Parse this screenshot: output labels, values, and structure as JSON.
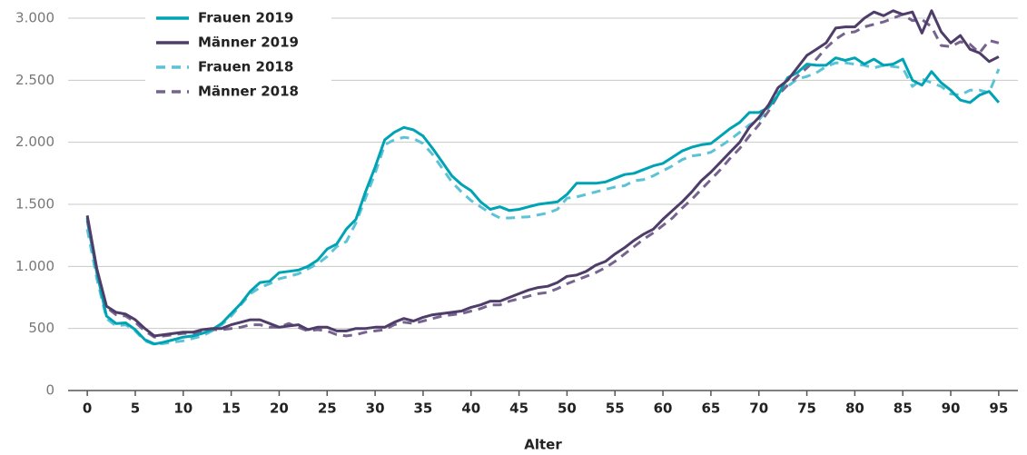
{
  "chart_data": {
    "type": "line",
    "x_label": "Alter",
    "x": [
      0,
      1,
      2,
      3,
      4,
      5,
      6,
      7,
      8,
      9,
      10,
      11,
      12,
      13,
      14,
      15,
      16,
      17,
      18,
      19,
      20,
      21,
      22,
      23,
      24,
      25,
      26,
      27,
      28,
      29,
      30,
      31,
      32,
      33,
      34,
      35,
      36,
      37,
      38,
      39,
      40,
      41,
      42,
      43,
      44,
      45,
      46,
      47,
      48,
      49,
      50,
      51,
      52,
      53,
      54,
      55,
      56,
      57,
      58,
      59,
      60,
      61,
      62,
      63,
      64,
      65,
      66,
      67,
      68,
      69,
      70,
      71,
      72,
      73,
      74,
      75,
      76,
      77,
      78,
      79,
      80,
      81,
      82,
      83,
      84,
      85,
      86,
      87,
      88,
      89,
      90,
      91,
      92,
      93,
      94,
      95
    ],
    "series": [
      {
        "name": "Frauen 2019",
        "color": "#00a3b4",
        "dashed": false,
        "values": [
          1390,
          950,
          600,
          540,
          545,
          490,
          410,
          375,
          390,
          410,
          430,
          440,
          460,
          490,
          540,
          620,
          700,
          800,
          870,
          880,
          950,
          960,
          970,
          1000,
          1050,
          1140,
          1180,
          1300,
          1380,
          1600,
          1800,
          2020,
          2080,
          2120,
          2100,
          2050,
          1950,
          1840,
          1730,
          1660,
          1610,
          1520,
          1460,
          1480,
          1450,
          1460,
          1480,
          1500,
          1510,
          1520,
          1580,
          1670,
          1670,
          1670,
          1680,
          1710,
          1740,
          1750,
          1780,
          1810,
          1830,
          1880,
          1930,
          1960,
          1980,
          1990,
          2050,
          2110,
          2160,
          2240,
          2240,
          2280,
          2380,
          2520,
          2560,
          2630,
          2620,
          2620,
          2680,
          2660,
          2680,
          2630,
          2670,
          2620,
          2630,
          2670,
          2500,
          2460,
          2570,
          2480,
          2420,
          2340,
          2320,
          2380,
          2410,
          2320
        ]
      },
      {
        "name": "Männer 2019",
        "color": "#4e3d68",
        "dashed": false,
        "values": [
          1410,
          980,
          680,
          630,
          615,
          570,
          500,
          440,
          450,
          460,
          470,
          470,
          490,
          500,
          500,
          530,
          550,
          570,
          570,
          540,
          510,
          520,
          530,
          490,
          510,
          510,
          480,
          480,
          500,
          500,
          510,
          510,
          550,
          580,
          560,
          590,
          610,
          620,
          630,
          640,
          670,
          690,
          720,
          720,
          750,
          780,
          810,
          830,
          840,
          870,
          920,
          930,
          960,
          1010,
          1040,
          1100,
          1150,
          1210,
          1260,
          1300,
          1380,
          1450,
          1520,
          1600,
          1690,
          1760,
          1840,
          1920,
          2000,
          2120,
          2200,
          2300,
          2440,
          2500,
          2600,
          2700,
          2750,
          2800,
          2920,
          2930,
          2930,
          3000,
          3050,
          3020,
          3060,
          3030,
          3050,
          2880,
          3060,
          2890,
          2800,
          2860,
          2750,
          2720,
          2650,
          2690
        ]
      },
      {
        "name": "Frauen 2018",
        "color": "#5cc3d6",
        "dashed": true,
        "values": [
          1300,
          900,
          580,
          520,
          530,
          480,
          400,
          370,
          380,
          390,
          400,
          420,
          440,
          480,
          530,
          600,
          690,
          780,
          830,
          860,
          900,
          920,
          940,
          980,
          1020,
          1080,
          1160,
          1200,
          1350,
          1550,
          1750,
          1980,
          2020,
          2040,
          2030,
          1990,
          1900,
          1790,
          1680,
          1600,
          1530,
          1480,
          1430,
          1390,
          1390,
          1395,
          1400,
          1415,
          1430,
          1460,
          1550,
          1560,
          1580,
          1600,
          1620,
          1640,
          1650,
          1690,
          1700,
          1730,
          1770,
          1810,
          1860,
          1890,
          1900,
          1920,
          1970,
          2020,
          2080,
          2140,
          2180,
          2280,
          2400,
          2450,
          2510,
          2530,
          2560,
          2610,
          2640,
          2640,
          2630,
          2620,
          2600,
          2620,
          2610,
          2600,
          2450,
          2510,
          2480,
          2450,
          2390,
          2380,
          2420,
          2420,
          2400,
          2590
        ]
      },
      {
        "name": "Männer 2018",
        "color": "#76648f",
        "dashed": true,
        "values": [
          1370,
          950,
          670,
          610,
          600,
          550,
          480,
          430,
          440,
          450,
          460,
          460,
          480,
          490,
          490,
          500,
          510,
          530,
          530,
          510,
          510,
          540,
          510,
          480,
          490,
          480,
          450,
          440,
          450,
          470,
          480,
          490,
          530,
          550,
          540,
          560,
          580,
          600,
          610,
          620,
          640,
          660,
          690,
          690,
          720,
          740,
          760,
          780,
          790,
          820,
          860,
          890,
          920,
          950,
          990,
          1040,
          1100,
          1160,
          1220,
          1270,
          1330,
          1390,
          1470,
          1540,
          1620,
          1700,
          1780,
          1870,
          1950,
          2050,
          2140,
          2250,
          2380,
          2460,
          2530,
          2600,
          2670,
          2760,
          2830,
          2880,
          2890,
          2930,
          2950,
          2970,
          3000,
          3030,
          2980,
          2990,
          2930,
          2780,
          2770,
          2810,
          2790,
          2720,
          2820,
          2800
        ]
      }
    ],
    "xlim": [
      -2,
      97
    ],
    "xticks": [
      0,
      5,
      10,
      15,
      20,
      25,
      30,
      35,
      40,
      45,
      50,
      55,
      60,
      65,
      70,
      75,
      80,
      85,
      90,
      95
    ],
    "ylim": [
      0,
      3000
    ],
    "yticks": [
      0,
      500,
      {
        "value": 1000,
        "label": "1.000"
      },
      {
        "value": 1500,
        "label": "1.500"
      },
      {
        "value": 2000,
        "label": "2.000"
      },
      {
        "value": 2500,
        "label": "2.500"
      },
      {
        "value": 3000,
        "label": "3.000"
      }
    ],
    "grid": true,
    "legend": "upper left"
  }
}
